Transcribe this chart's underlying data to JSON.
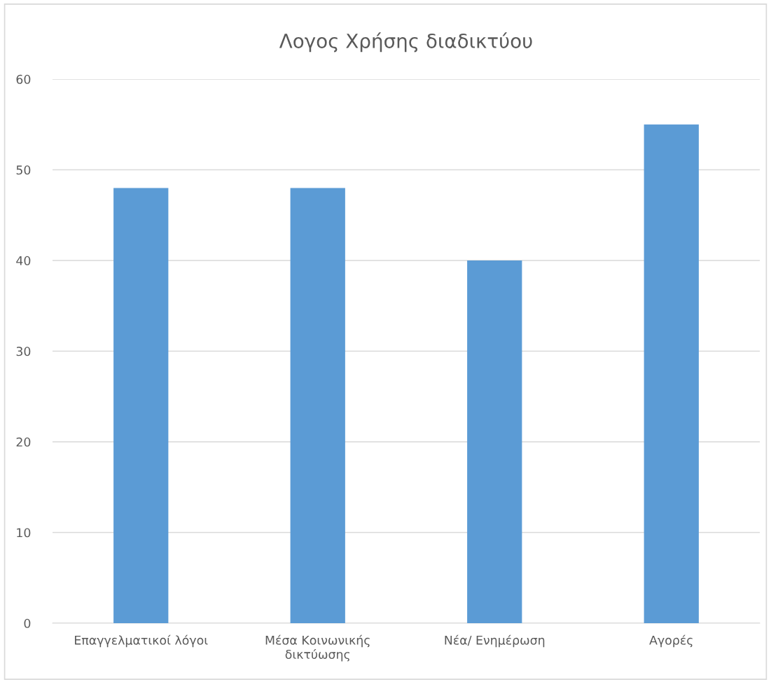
{
  "chart_data": {
    "type": "bar",
    "title": "Λογος Χρήσης διαδικτύου",
    "categories": [
      "Επαγγελματικοί λόγοι",
      "Μέσα Κοινωνικής δικτύωσης",
      "Νέα/ Ενημέρωση",
      "Αγορές"
    ],
    "values": [
      48,
      48,
      40,
      55
    ],
    "color": "#5b9bd5",
    "ylim": [
      0,
      60
    ],
    "yticks": [
      0,
      10,
      20,
      30,
      40,
      50,
      60
    ],
    "grid": "y",
    "legend": false
  }
}
